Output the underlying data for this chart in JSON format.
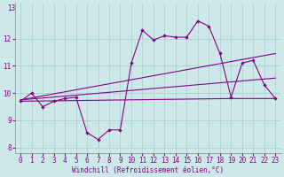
{
  "xlabel": "Windchill (Refroidissement éolien,°C)",
  "bg_color": "#cce8e8",
  "grid_color": "#aacccc",
  "line_color": "#880088",
  "spine_color": "#888888",
  "xlim": [
    -0.5,
    23.5
  ],
  "ylim": [
    7.8,
    13.3
  ],
  "xticks": [
    0,
    1,
    2,
    3,
    4,
    5,
    6,
    7,
    8,
    9,
    10,
    11,
    12,
    13,
    14,
    15,
    16,
    17,
    18,
    19,
    20,
    21,
    22,
    23
  ],
  "yticks": [
    8,
    9,
    10,
    11,
    12
  ],
  "ytick_label_top": "13",
  "curve1_x": [
    0,
    1,
    2,
    3,
    4,
    5,
    6,
    7,
    8,
    9,
    10,
    11,
    12,
    13,
    14,
    15,
    16,
    17,
    18,
    19,
    20,
    21,
    22,
    23
  ],
  "curve1_y": [
    9.7,
    10.0,
    9.5,
    9.7,
    9.8,
    9.85,
    8.55,
    8.3,
    8.65,
    8.65,
    11.1,
    12.3,
    11.95,
    12.1,
    12.05,
    12.05,
    12.65,
    12.45,
    11.45,
    9.85,
    11.1,
    11.2,
    10.3,
    9.8
  ],
  "curve2_x": [
    0,
    23
  ],
  "curve2_y": [
    9.75,
    11.45
  ],
  "curve3_x": [
    0,
    23
  ],
  "curve3_y": [
    9.75,
    10.55
  ],
  "curve4_x": [
    0,
    19,
    23
  ],
  "curve4_y": [
    9.7,
    9.8,
    9.8
  ],
  "tick_fontsize": 5.5,
  "xlabel_fontsize": 5.5
}
